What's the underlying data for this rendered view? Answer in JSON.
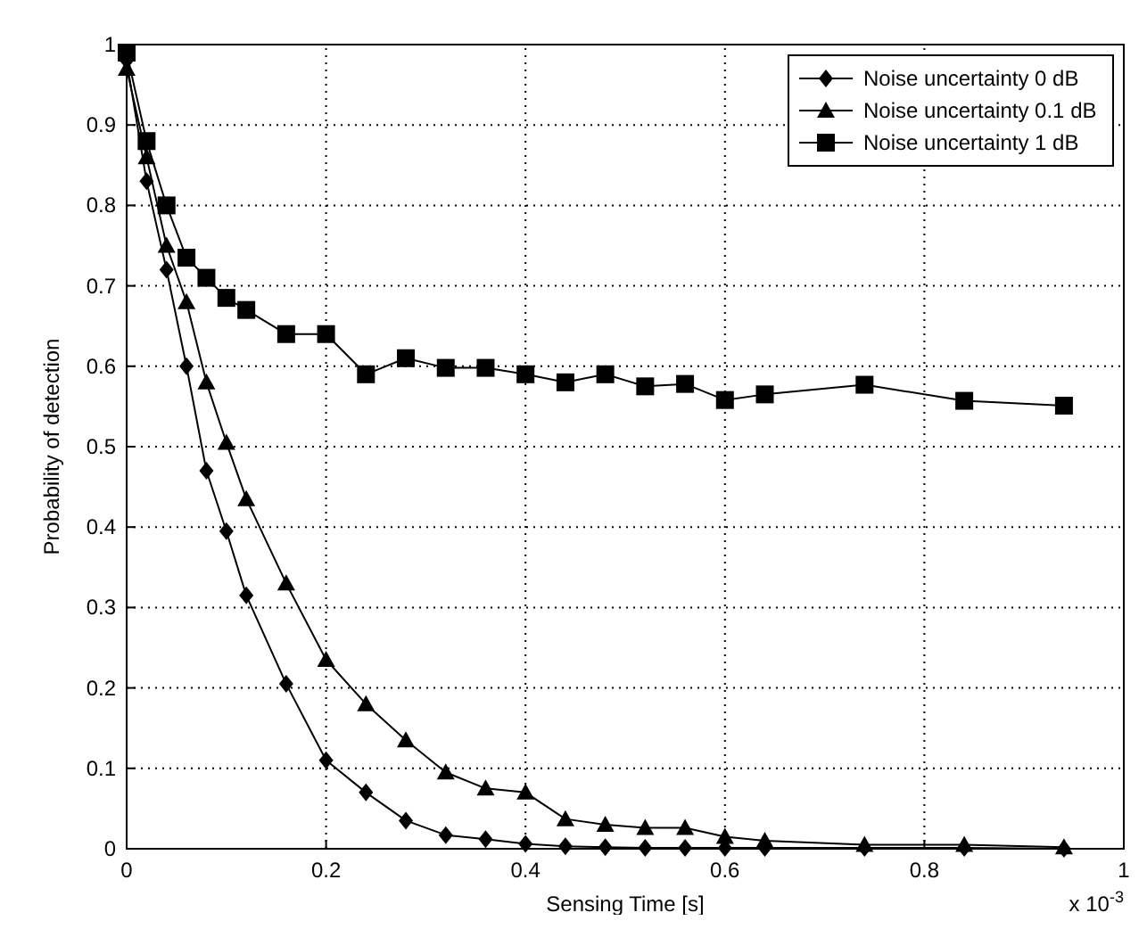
{
  "chart_data": {
    "type": "line",
    "xlabel": "Sensing Time [s]",
    "ylabel": "Probability of detection",
    "annotations": [
      "x 10$^{-3}$"
    ],
    "x": [
      0,
      0.02,
      0.04,
      0.06,
      0.08,
      0.1,
      0.12,
      0.16,
      0.2,
      0.24,
      0.28,
      0.32,
      0.36,
      0.4,
      0.44,
      0.48,
      0.52,
      0.56,
      0.6,
      0.64,
      0.74,
      0.84,
      0.94
    ],
    "series": [
      {
        "name": "Noise uncertainty 0 dB",
        "color": "#000000",
        "marker": "diamond",
        "values": [
          0.98,
          0.83,
          0.72,
          0.6,
          0.47,
          0.395,
          0.315,
          0.205,
          0.11,
          0.07,
          0.035,
          0.017,
          0.012,
          0.006,
          0.003,
          0.002,
          0.001,
          0.001,
          0.001,
          0.001,
          0.001,
          0.001,
          0
        ]
      },
      {
        "name": "Noise uncertainty 0.1 dB",
        "color": "#000000",
        "marker": "triangle",
        "values": [
          0.97,
          0.86,
          0.75,
          0.68,
          0.58,
          0.505,
          0.435,
          0.33,
          0.235,
          0.18,
          0.135,
          0.095,
          0.075,
          0.07,
          0.037,
          0.03,
          0.026,
          0.026,
          0.015,
          0.01,
          0.005,
          0.005,
          0.002
        ]
      },
      {
        "name": "Noise uncertainty 1 dB",
        "color": "#000000",
        "marker": "square",
        "values": [
          0.99,
          0.88,
          0.8,
          0.735,
          0.71,
          0.685,
          0.67,
          0.64,
          0.64,
          0.59,
          0.61,
          0.598,
          0.598,
          0.59,
          0.58,
          0.59,
          0.575,
          0.578,
          0.558,
          0.565,
          0.577,
          0.557,
          0.551
        ]
      }
    ],
    "xlim": [
      0,
      1
    ],
    "xticks": [
      0,
      0.2,
      0.4,
      0.6,
      0.8,
      1
    ],
    "ylim": [
      0,
      1
    ],
    "yticks": [
      0,
      0.1,
      0.2,
      0.3,
      0.4,
      0.5,
      0.6,
      0.7,
      0.8,
      0.9,
      1
    ],
    "grid": true,
    "legend": "top right",
    "line_style": "solid"
  }
}
